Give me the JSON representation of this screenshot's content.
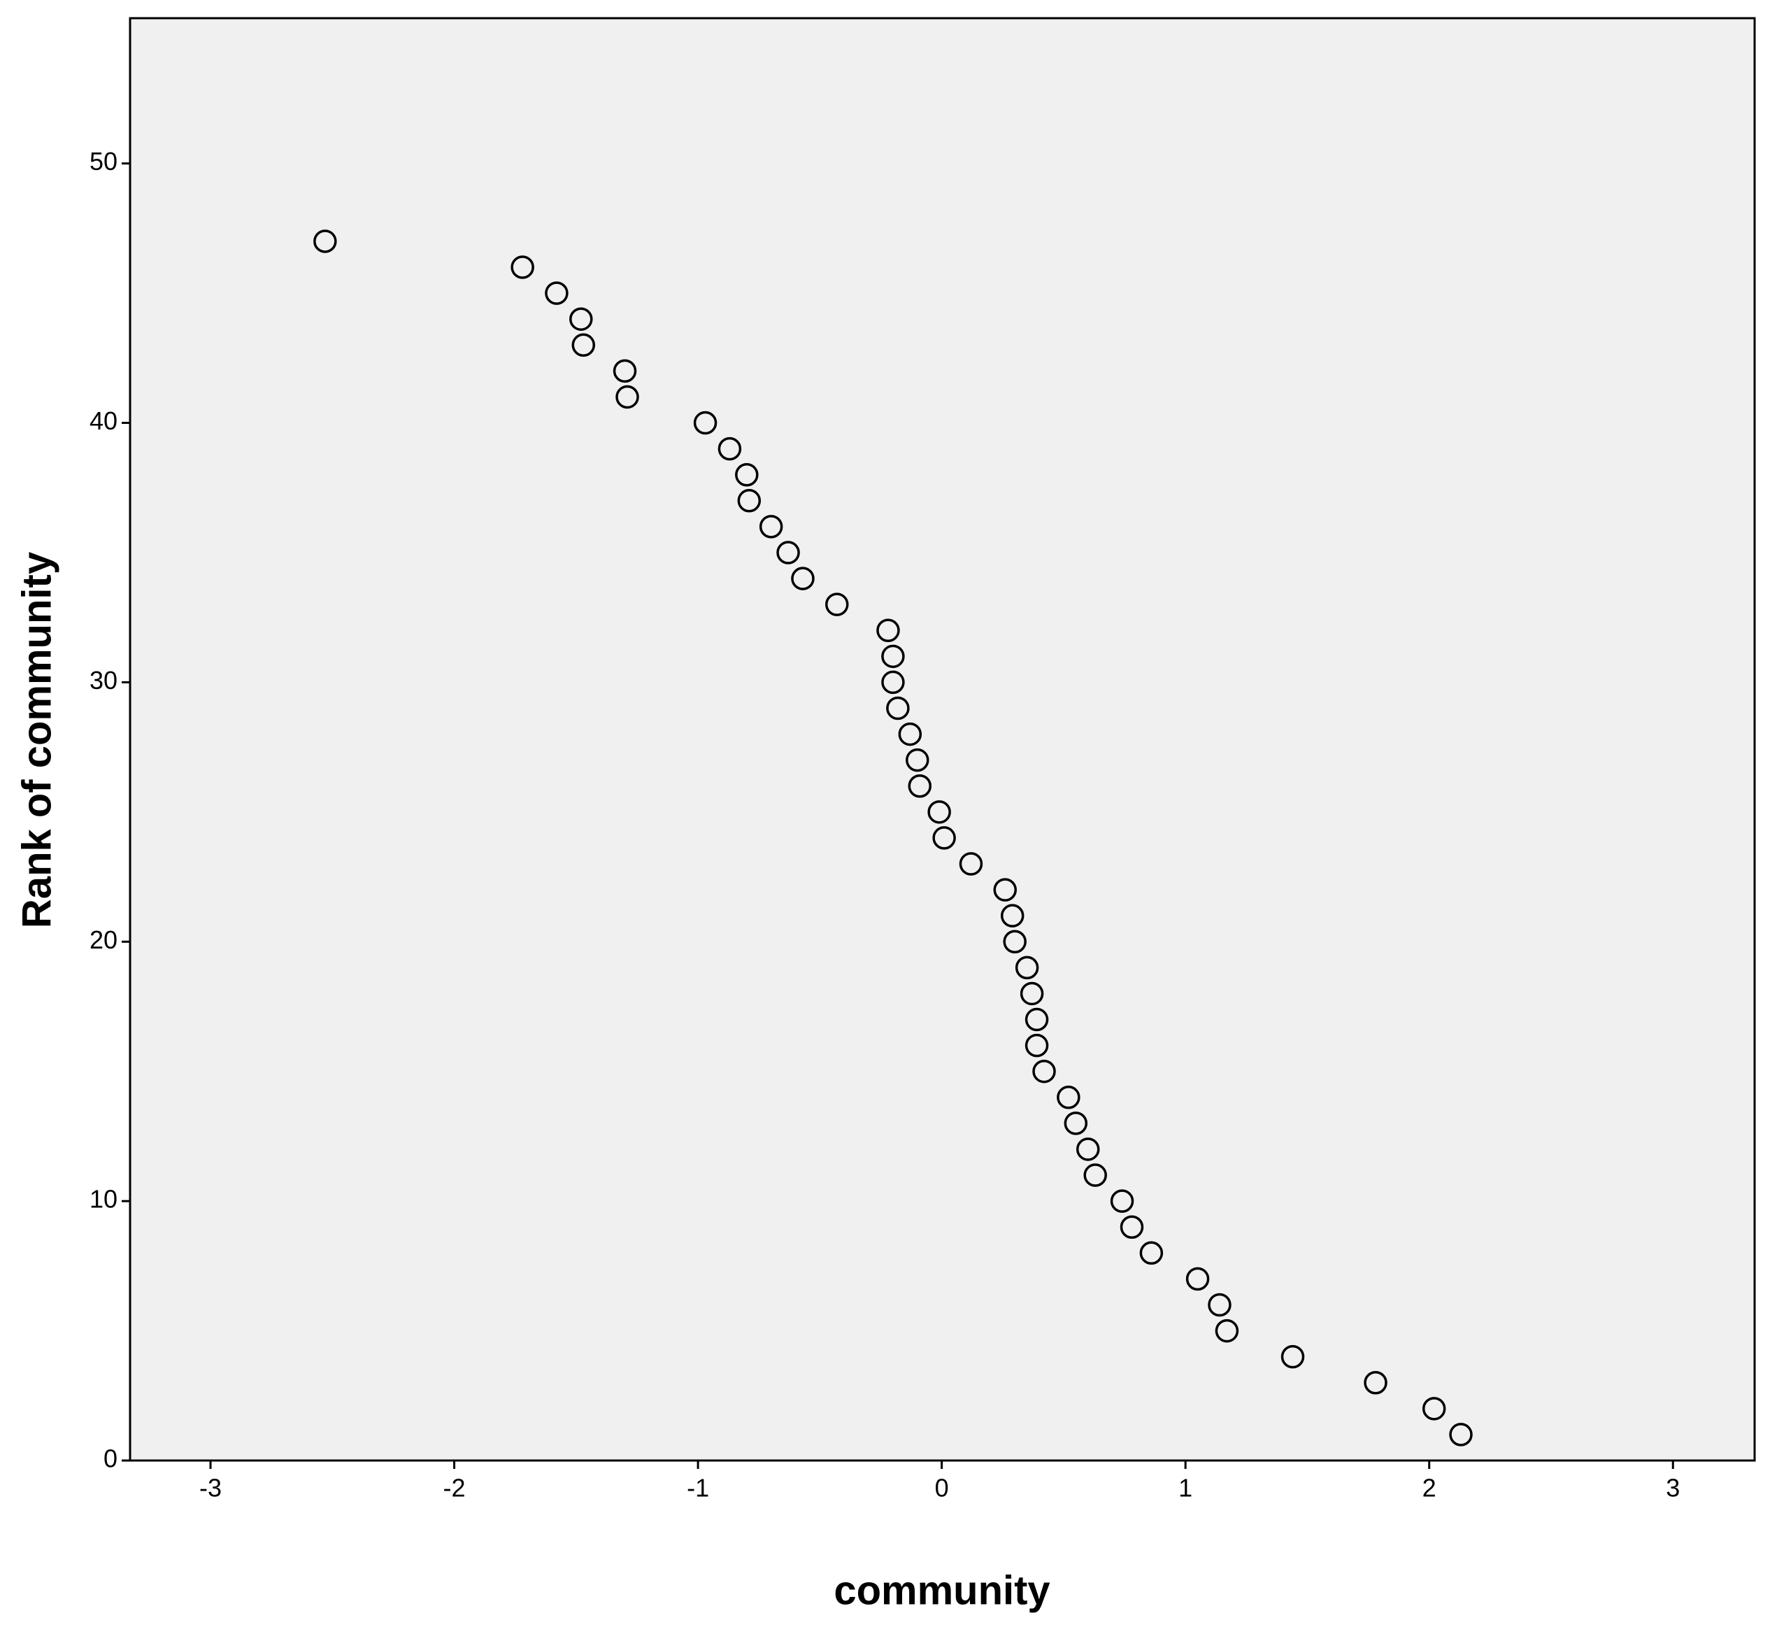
{
  "chart_data": {
    "type": "scatter",
    "x_label": "community",
    "y_label": "Rank of community",
    "x": [
      2.13,
      2.02,
      1.78,
      1.44,
      1.17,
      1.14,
      1.05,
      0.86,
      0.78,
      0.74,
      0.63,
      0.6,
      0.55,
      0.52,
      0.42,
      0.39,
      0.39,
      0.37,
      0.35,
      0.3,
      0.29,
      0.26,
      0.12,
      0.01,
      -0.01,
      -0.09,
      -0.1,
      -0.13,
      -0.18,
      -0.2,
      -0.2,
      -0.22,
      -0.43,
      -0.57,
      -0.63,
      -0.7,
      -0.79,
      -0.8,
      -0.87,
      -0.97,
      -1.29,
      -1.3,
      -1.47,
      -1.48,
      -1.58,
      -1.72,
      -2.53
    ],
    "values": [
      1,
      2,
      3,
      4,
      5,
      6,
      7,
      8,
      9,
      10,
      11,
      12,
      13,
      14,
      15,
      16,
      17,
      18,
      19,
      20,
      21,
      22,
      23,
      24,
      25,
      26,
      27,
      28,
      29,
      30,
      31,
      32,
      33,
      34,
      35,
      36,
      37,
      38,
      39,
      40,
      41,
      42,
      43,
      44,
      45,
      46,
      47
    ],
    "color": "#000000",
    "plot_background": "#f0f0f0",
    "xlim": [
      -3.33,
      3.335
    ],
    "xticks": [
      -3,
      -2,
      -1,
      0,
      1,
      2,
      3
    ],
    "ylim": [
      0,
      55.6
    ],
    "yticks": [
      0,
      10,
      20,
      30,
      40,
      50
    ],
    "grid": false
  }
}
